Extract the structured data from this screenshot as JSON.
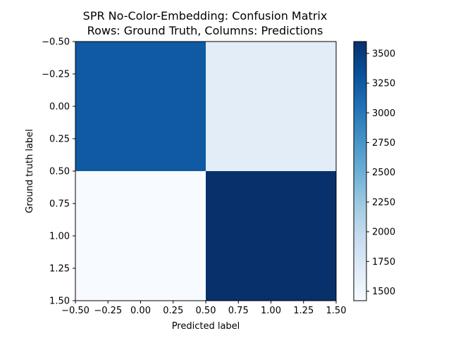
{
  "chart_data": {
    "type": "heatmap",
    "title_lines": [
      "SPR No-Color-Embedding: Confusion Matrix",
      "Rows: Ground Truth, Columns: Predictions"
    ],
    "xlabel": "Predicted label",
    "ylabel": "Ground truth label",
    "matrix": [
      [
        3250,
        1650
      ],
      [
        1420,
        3600
      ]
    ],
    "x_range": [
      -0.5,
      1.5
    ],
    "y_range": [
      -0.5,
      1.5
    ],
    "y_inverted": true,
    "x_ticks": [
      "−0.50",
      "−0.25",
      "0.00",
      "0.25",
      "0.50",
      "0.75",
      "1.00",
      "1.25",
      "1.50"
    ],
    "y_ticks": [
      "−0.50",
      "−0.25",
      "0.00",
      "0.25",
      "0.50",
      "0.75",
      "1.00",
      "1.25",
      "1.50"
    ],
    "colorbar": {
      "min": 1420,
      "max": 3600,
      "ticks": [
        1500,
        1750,
        2000,
        2250,
        2500,
        2750,
        3000,
        3250,
        3500
      ],
      "tick_labels": [
        "1500",
        "1750",
        "2000",
        "2250",
        "2500",
        "2750",
        "3000",
        "3250",
        "3500"
      ],
      "colormap": "Blues"
    },
    "grid": false
  }
}
